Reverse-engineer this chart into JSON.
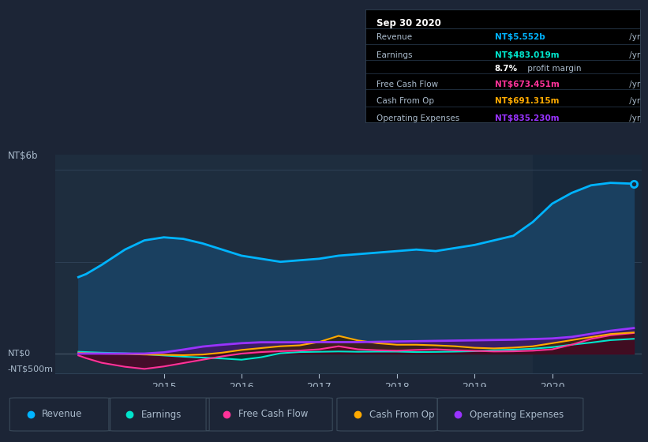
{
  "bg_color": "#1c2536",
  "plot_bg_color": "#1e2d3e",
  "plot_bg_right": "#1a2a3a",
  "axis_color": "#8899aa",
  "grid_color": "#2a3d52",
  "text_color": "#aabbcc",
  "title_color": "#ffffff",
  "ylabel_top": "NT$6b",
  "ylabel_zero": "NT$0",
  "ylabel_neg": "-NT$500m",
  "xlim": [
    2013.6,
    2021.15
  ],
  "ylim": [
    -650,
    6500
  ],
  "revenue_color": "#00b4ff",
  "earnings_color": "#00e5cc",
  "fcf_color": "#ff3399",
  "cashop_color": "#ffaa00",
  "opex_color": "#9933ff",
  "revenue_fill_color": "#1a4060",
  "earnings_fill_color": "#003322",
  "fcf_fill_color": "#550022",
  "cashop_fill_color": "#3d2200",
  "opex_fill_color": "#3d1a66",
  "info_box": {
    "title": "Sep 30 2020",
    "rows": [
      {
        "label": "Revenue",
        "value": "NT$5.552b",
        "suffix": " /yr",
        "value_color": "#00b4ff"
      },
      {
        "label": "Earnings",
        "value": "NT$483.019m",
        "suffix": " /yr",
        "value_color": "#00e5cc"
      },
      {
        "label": "",
        "value": "8.7%",
        "suffix": " profit margin",
        "value_color": "#ffffff"
      },
      {
        "label": "Free Cash Flow",
        "value": "NT$673.451m",
        "suffix": " /yr",
        "value_color": "#ff3399"
      },
      {
        "label": "Cash From Op",
        "value": "NT$691.315m",
        "suffix": " /yr",
        "value_color": "#ffaa00"
      },
      {
        "label": "Operating Expenses",
        "value": "NT$835.230m",
        "suffix": " /yr",
        "value_color": "#9933ff"
      }
    ]
  },
  "legend_items": [
    {
      "label": "Revenue",
      "color": "#00b4ff"
    },
    {
      "label": "Earnings",
      "color": "#00e5cc"
    },
    {
      "label": "Free Cash Flow",
      "color": "#ff3399"
    },
    {
      "label": "Cash From Op",
      "color": "#ffaa00"
    },
    {
      "label": "Operating Expenses",
      "color": "#9933ff"
    }
  ],
  "revenue": {
    "x": [
      2013.9,
      2014.0,
      2014.2,
      2014.5,
      2014.75,
      2015.0,
      2015.25,
      2015.5,
      2015.75,
      2016.0,
      2016.25,
      2016.5,
      2016.75,
      2017.0,
      2017.25,
      2017.5,
      2017.75,
      2018.0,
      2018.25,
      2018.5,
      2018.75,
      2019.0,
      2019.25,
      2019.5,
      2019.75,
      2020.0,
      2020.25,
      2020.5,
      2020.75,
      2021.05
    ],
    "y": [
      2500,
      2600,
      2900,
      3400,
      3700,
      3800,
      3750,
      3600,
      3400,
      3200,
      3100,
      3000,
      3050,
      3100,
      3200,
      3250,
      3300,
      3350,
      3400,
      3350,
      3450,
      3550,
      3700,
      3850,
      4300,
      4900,
      5250,
      5500,
      5580,
      5552
    ]
  },
  "earnings": {
    "x": [
      2013.9,
      2014.0,
      2014.2,
      2014.5,
      2014.75,
      2015.0,
      2015.25,
      2015.5,
      2015.75,
      2016.0,
      2016.25,
      2016.5,
      2016.75,
      2017.0,
      2017.25,
      2017.5,
      2017.75,
      2018.0,
      2018.25,
      2018.5,
      2018.75,
      2019.0,
      2019.25,
      2019.5,
      2019.75,
      2020.0,
      2020.25,
      2020.5,
      2020.75,
      2021.05
    ],
    "y": [
      60,
      50,
      30,
      10,
      -20,
      -60,
      -100,
      -130,
      -160,
      -200,
      -120,
      10,
      50,
      60,
      70,
      60,
      65,
      65,
      50,
      55,
      65,
      80,
      110,
      130,
      160,
      210,
      290,
      360,
      440,
      483
    ]
  },
  "fcf": {
    "x": [
      2013.9,
      2014.0,
      2014.2,
      2014.5,
      2014.75,
      2015.0,
      2015.25,
      2015.5,
      2015.75,
      2016.0,
      2016.25,
      2016.5,
      2016.75,
      2017.0,
      2017.25,
      2017.5,
      2017.75,
      2018.0,
      2018.25,
      2018.5,
      2018.75,
      2019.0,
      2019.25,
      2019.5,
      2019.75,
      2020.0,
      2020.25,
      2020.5,
      2020.75,
      2021.05
    ],
    "y": [
      -60,
      -150,
      -300,
      -430,
      -500,
      -420,
      -310,
      -200,
      -90,
      0,
      50,
      80,
      100,
      140,
      240,
      140,
      110,
      95,
      120,
      140,
      110,
      90,
      70,
      75,
      95,
      140,
      290,
      480,
      600,
      673
    ]
  },
  "cashop": {
    "x": [
      2013.9,
      2014.0,
      2014.2,
      2014.5,
      2014.75,
      2015.0,
      2015.25,
      2015.5,
      2015.75,
      2016.0,
      2016.25,
      2016.5,
      2016.75,
      2017.0,
      2017.25,
      2017.5,
      2017.75,
      2018.0,
      2018.25,
      2018.5,
      2018.75,
      2019.0,
      2019.25,
      2019.5,
      2019.75,
      2020.0,
      2020.25,
      2020.5,
      2020.75,
      2021.05
    ],
    "y": [
      30,
      10,
      0,
      -10,
      -30,
      -40,
      -50,
      -30,
      30,
      120,
      180,
      240,
      270,
      380,
      580,
      430,
      340,
      290,
      290,
      270,
      240,
      190,
      170,
      195,
      240,
      340,
      440,
      540,
      640,
      691
    ]
  },
  "opex": {
    "x": [
      2013.9,
      2014.0,
      2014.2,
      2014.5,
      2014.75,
      2015.0,
      2015.25,
      2015.5,
      2015.75,
      2016.0,
      2016.25,
      2016.5,
      2016.75,
      2017.0,
      2017.25,
      2017.5,
      2017.75,
      2018.0,
      2018.25,
      2018.5,
      2018.75,
      2019.0,
      2019.25,
      2019.5,
      2019.75,
      2020.0,
      2020.25,
      2020.5,
      2020.75,
      2021.05
    ],
    "y": [
      0,
      0,
      0,
      0,
      0,
      40,
      130,
      230,
      290,
      340,
      370,
      370,
      370,
      375,
      375,
      375,
      385,
      395,
      405,
      415,
      425,
      435,
      445,
      455,
      475,
      495,
      545,
      645,
      745,
      835
    ]
  }
}
